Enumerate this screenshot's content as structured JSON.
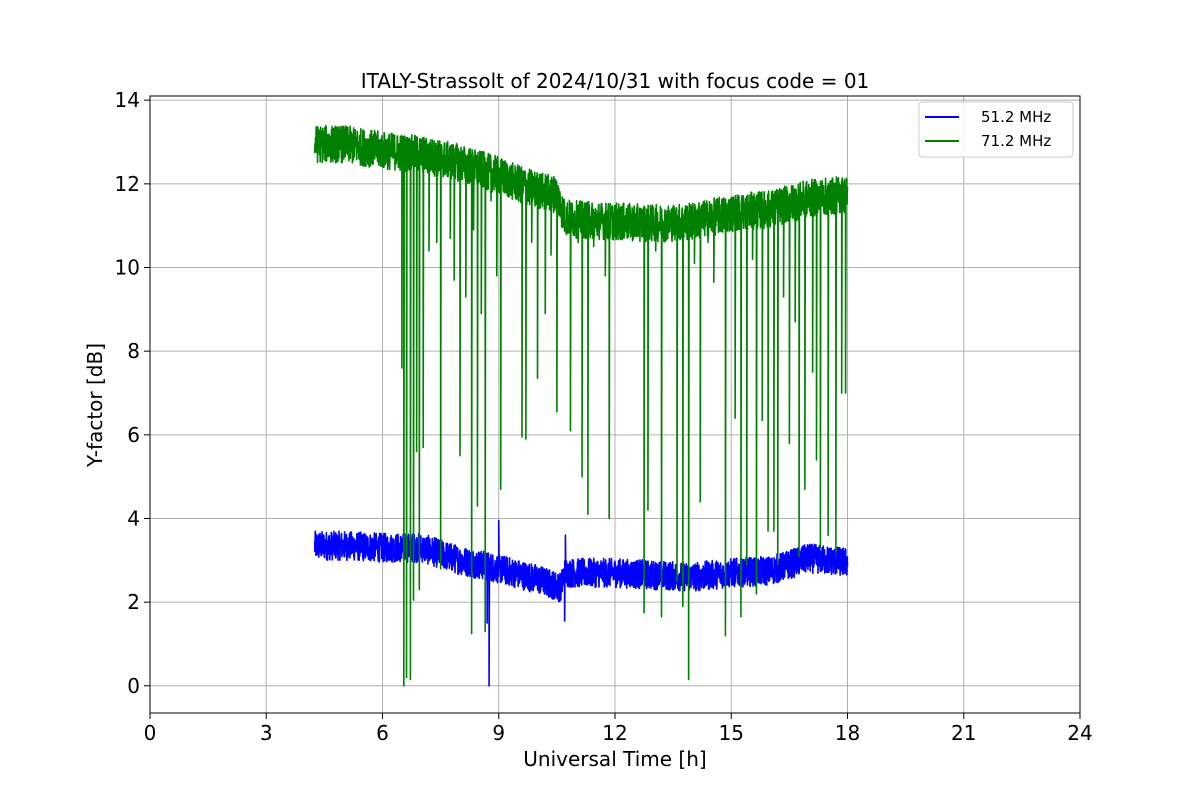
{
  "chart_data": {
    "type": "line",
    "title": "ITALY-Strassolt of 2024/10/31 with focus code = 01",
    "xlabel": "Universal Time [h]",
    "ylabel": "Y-factor [dB]",
    "xlim": [
      0,
      24
    ],
    "ylim": [
      -0.65,
      14.1
    ],
    "x_ticks": [
      0,
      3,
      6,
      9,
      12,
      15,
      18,
      21,
      24
    ],
    "y_ticks": [
      0,
      2,
      4,
      6,
      8,
      10,
      12,
      14
    ],
    "grid": true,
    "legend_position": "top-right",
    "series": [
      {
        "name": "51.2 MHz",
        "color": "#0000ff",
        "trend_x": [
          4.25,
          5.0,
          6.0,
          7.0,
          8.0,
          9.0,
          10.0,
          10.6,
          10.7,
          12.0,
          13.0,
          14.0,
          15.0,
          16.0,
          17.0,
          18.0
        ],
        "trend_y": [
          3.35,
          3.35,
          3.3,
          3.3,
          3.0,
          2.8,
          2.55,
          2.35,
          2.7,
          2.7,
          2.65,
          2.6,
          2.7,
          2.75,
          3.05,
          2.95
        ],
        "noise_amplitude": 0.35,
        "spikes": [
          {
            "x": 8.75,
            "y": 0.0
          },
          {
            "x": 9.0,
            "y": 3.95
          },
          {
            "x": 10.7,
            "y": 1.55
          },
          {
            "x": 10.72,
            "y": 3.6
          },
          {
            "x": 8.7,
            "y": 1.5
          }
        ]
      },
      {
        "name": "71.2 MHz",
        "color": "#008000",
        "trend_x": [
          4.25,
          5.0,
          6.0,
          7.0,
          8.0,
          8.5,
          9.0,
          9.5,
          10.0,
          10.5,
          10.7,
          11.0,
          12.0,
          13.0,
          14.0,
          15.0,
          16.0,
          17.0,
          18.0
        ],
        "trend_y": [
          12.95,
          12.95,
          12.8,
          12.7,
          12.5,
          12.35,
          12.2,
          12.0,
          11.85,
          11.75,
          11.2,
          11.15,
          11.1,
          11.05,
          11.1,
          11.3,
          11.4,
          11.65,
          11.75
        ],
        "noise_amplitude": 0.45,
        "spikes": [
          {
            "x": 6.55,
            "y": 0.0
          },
          {
            "x": 6.62,
            "y": 0.2
          },
          {
            "x": 6.72,
            "y": 0.15
          },
          {
            "x": 6.5,
            "y": 7.6
          },
          {
            "x": 6.8,
            "y": 2.05
          },
          {
            "x": 6.88,
            "y": 5.6
          },
          {
            "x": 6.95,
            "y": 2.3
          },
          {
            "x": 7.05,
            "y": 5.7
          },
          {
            "x": 7.2,
            "y": 10.4
          },
          {
            "x": 7.4,
            "y": 10.6
          },
          {
            "x": 7.5,
            "y": 2.8
          },
          {
            "x": 7.75,
            "y": 10.7
          },
          {
            "x": 7.85,
            "y": 9.7
          },
          {
            "x": 8.0,
            "y": 5.5
          },
          {
            "x": 8.15,
            "y": 9.3
          },
          {
            "x": 8.3,
            "y": 1.25
          },
          {
            "x": 8.35,
            "y": 10.9
          },
          {
            "x": 8.45,
            "y": 4.3
          },
          {
            "x": 8.55,
            "y": 8.9
          },
          {
            "x": 8.65,
            "y": 1.3
          },
          {
            "x": 8.8,
            "y": 11.6
          },
          {
            "x": 8.95,
            "y": 9.8
          },
          {
            "x": 9.05,
            "y": 4.7
          },
          {
            "x": 9.6,
            "y": 5.95
          },
          {
            "x": 9.7,
            "y": 5.9
          },
          {
            "x": 9.85,
            "y": 10.6
          },
          {
            "x": 10.0,
            "y": 7.35
          },
          {
            "x": 10.2,
            "y": 8.9
          },
          {
            "x": 10.35,
            "y": 10.3
          },
          {
            "x": 10.5,
            "y": 6.55
          },
          {
            "x": 10.85,
            "y": 6.1
          },
          {
            "x": 11.05,
            "y": 10.6
          },
          {
            "x": 11.15,
            "y": 5.0
          },
          {
            "x": 11.3,
            "y": 4.1
          },
          {
            "x": 11.45,
            "y": 10.5
          },
          {
            "x": 11.75,
            "y": 9.8
          },
          {
            "x": 11.85,
            "y": 4.0
          },
          {
            "x": 12.75,
            "y": 1.75
          },
          {
            "x": 12.85,
            "y": 4.2
          },
          {
            "x": 13.05,
            "y": 10.4
          },
          {
            "x": 13.2,
            "y": 1.65
          },
          {
            "x": 13.6,
            "y": 2.5
          },
          {
            "x": 13.75,
            "y": 1.9
          },
          {
            "x": 13.9,
            "y": 0.15
          },
          {
            "x": 14.05,
            "y": 10.1
          },
          {
            "x": 14.2,
            "y": 4.4
          },
          {
            "x": 14.4,
            "y": 10.6
          },
          {
            "x": 14.55,
            "y": 9.65
          },
          {
            "x": 14.85,
            "y": 1.2
          },
          {
            "x": 15.0,
            "y": 10.9
          },
          {
            "x": 15.1,
            "y": 6.4
          },
          {
            "x": 15.25,
            "y": 1.65
          },
          {
            "x": 15.4,
            "y": 2.9
          },
          {
            "x": 15.55,
            "y": 10.2
          },
          {
            "x": 15.65,
            "y": 2.2
          },
          {
            "x": 15.8,
            "y": 6.35
          },
          {
            "x": 15.95,
            "y": 3.7
          },
          {
            "x": 16.1,
            "y": 3.7
          },
          {
            "x": 16.2,
            "y": 2.9
          },
          {
            "x": 16.35,
            "y": 9.3
          },
          {
            "x": 16.5,
            "y": 5.8
          },
          {
            "x": 16.65,
            "y": 8.7
          },
          {
            "x": 16.75,
            "y": 3.1
          },
          {
            "x": 16.9,
            "y": 4.7
          },
          {
            "x": 17.1,
            "y": 7.5
          },
          {
            "x": 17.2,
            "y": 5.4
          },
          {
            "x": 17.3,
            "y": 3.3
          },
          {
            "x": 17.5,
            "y": 3.6
          },
          {
            "x": 17.7,
            "y": 3.2
          },
          {
            "x": 17.85,
            "y": 7.0
          },
          {
            "x": 17.95,
            "y": 7.0
          }
        ]
      }
    ]
  }
}
